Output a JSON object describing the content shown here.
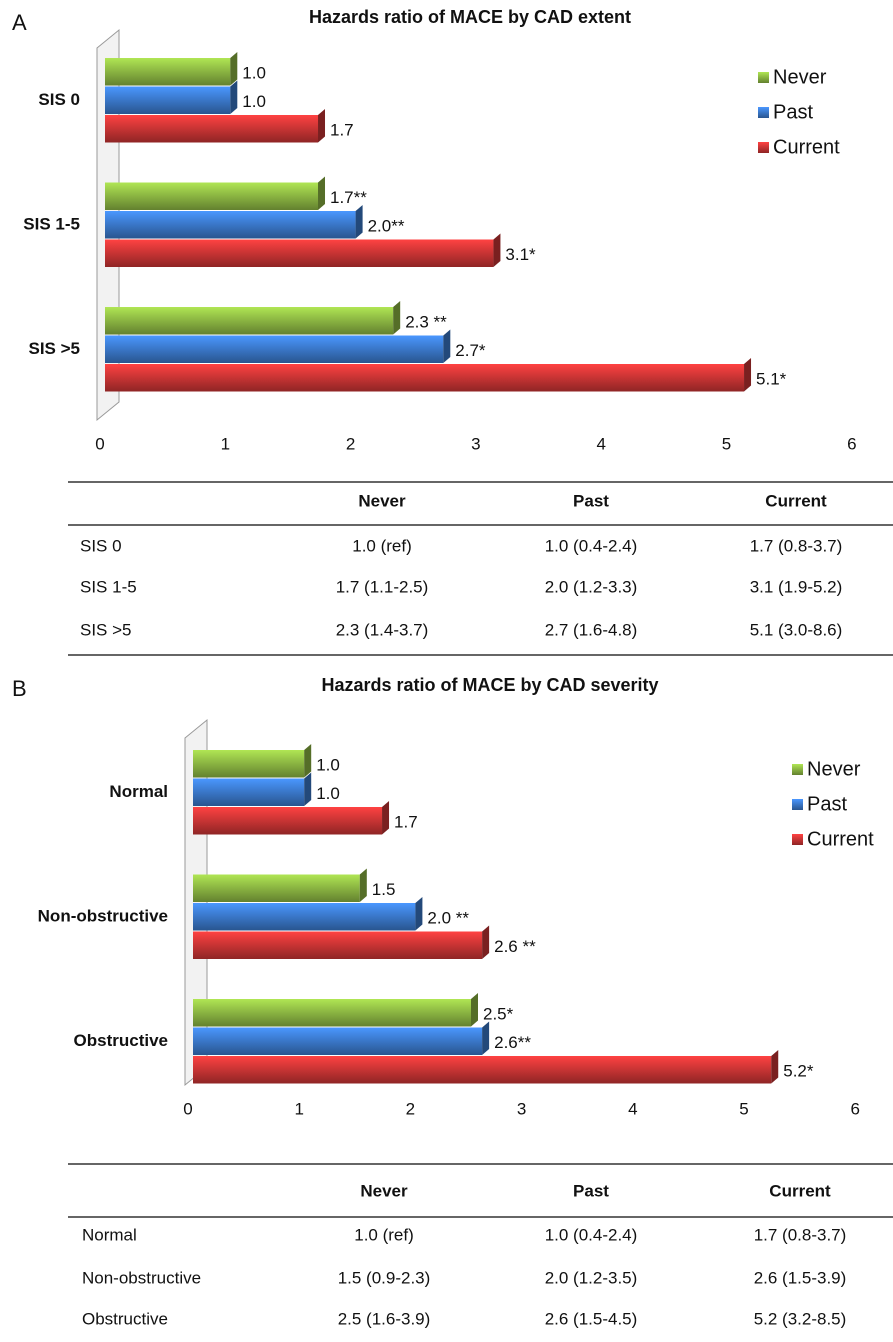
{
  "chart_data": [
    {
      "type": "bar",
      "orientation": "horizontal",
      "panel": "A",
      "title": "Hazards ratio of MACE by CAD extent",
      "categories": [
        "SIS 0",
        "SIS 1-5",
        "SIS >5"
      ],
      "series": [
        {
          "name": "Never",
          "color": "#8db843",
          "values": [
            1.0,
            1.7,
            2.3
          ],
          "value_labels": [
            "1.0",
            "1.7**",
            "2.3 **"
          ]
        },
        {
          "name": "Past",
          "color": "#3b79cc",
          "values": [
            1.0,
            2.0,
            2.7
          ],
          "value_labels": [
            "1.0",
            "2.0**",
            "2.7*"
          ]
        },
        {
          "name": "Current",
          "color": "#cc3535",
          "values": [
            1.7,
            3.1,
            5.1
          ],
          "value_labels": [
            "1.7",
            "3.1*",
            "5.1*"
          ]
        }
      ],
      "xlim": [
        0,
        6
      ],
      "xticks": [
        0,
        1,
        2,
        3,
        4,
        5,
        6
      ],
      "grid": false,
      "legend": "top-right",
      "table": {
        "columns": [
          "Never",
          "Past",
          "Current"
        ],
        "rows": [
          {
            "label": "SIS 0",
            "cells": [
              "1.0 (ref)",
              "1.0 (0.4-2.4)",
              "1.7 (0.8-3.7)"
            ]
          },
          {
            "label": "SIS 1-5",
            "cells": [
              "1.7 (1.1-2.5)",
              "2.0 (1.2-3.3)",
              "3.1 (1.9-5.2)"
            ]
          },
          {
            "label": "SIS >5",
            "cells": [
              "2.3 (1.4-3.7)",
              "2.7 (1.6-4.8)",
              "5.1 (3.0-8.6)"
            ]
          }
        ]
      }
    },
    {
      "type": "bar",
      "orientation": "horizontal",
      "panel": "B",
      "title": "Hazards ratio of MACE by CAD severity",
      "categories": [
        "Normal",
        "Non-obstructive",
        "Obstructive"
      ],
      "series": [
        {
          "name": "Never",
          "color": "#8db843",
          "values": [
            1.0,
            1.5,
            2.5
          ],
          "value_labels": [
            "1.0",
            "1.5",
            "2.5*"
          ]
        },
        {
          "name": "Past",
          "color": "#3b79cc",
          "values": [
            1.0,
            2.0,
            2.6
          ],
          "value_labels": [
            "1.0",
            "2.0 **",
            "2.6**"
          ]
        },
        {
          "name": "Current",
          "color": "#cc3535",
          "values": [
            1.7,
            2.6,
            5.2
          ],
          "value_labels": [
            "1.7",
            "2.6 **",
            "5.2*"
          ]
        }
      ],
      "xlim": [
        0,
        6
      ],
      "xticks": [
        0,
        1,
        2,
        3,
        4,
        5,
        6
      ],
      "grid": false,
      "legend": "top-right",
      "table": {
        "columns": [
          "Never",
          "Past",
          "Current"
        ],
        "rows": [
          {
            "label": "Normal",
            "cells": [
              "1.0 (ref)",
              "1.0 (0.4-2.4)",
              "1.7 (0.8-3.7)"
            ]
          },
          {
            "label": "Non-obstructive",
            "cells": [
              "1.5 (0.9-2.3)",
              "2.0 (1.2-3.5)",
              "2.6 (1.5-3.9)"
            ]
          },
          {
            "label": "Obstructive",
            "cells": [
              "2.5 (1.6-3.9)",
              "2.6 (1.5-4.5)",
              "5.2 (3.2-8.5)"
            ]
          }
        ]
      }
    }
  ]
}
